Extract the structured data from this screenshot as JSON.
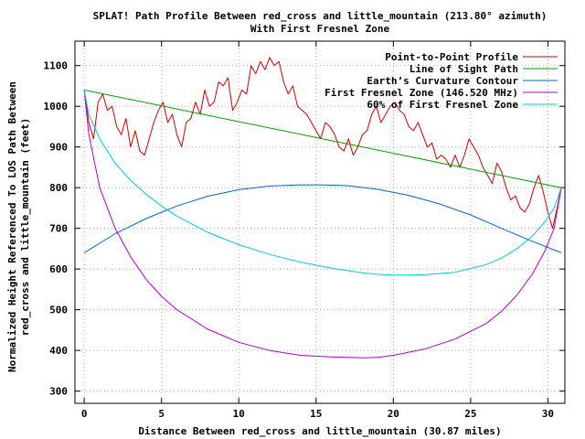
{
  "chart_data": {
    "type": "line",
    "title": "SPLAT! Path Profile Between red_cross and little_mountain (213.80° azimuth)",
    "subtitle": "With First Fresnel Zone",
    "xlabel": "Distance Between red_cross and little_mountain (30.87 miles)",
    "ylabel_line1": "Normalized Height Referenced To LOS Path Between",
    "ylabel_line2": "red_cross and little_mountain (feet)",
    "xlim": [
      -0.6,
      31.1
    ],
    "ylim": [
      270,
      1160
    ],
    "x_ticks": [
      0,
      5,
      10,
      15,
      20,
      25,
      30
    ],
    "x_tick_labels": [
      "0",
      "5",
      "10",
      "15",
      "20",
      "25",
      "30"
    ],
    "y_ticks": [
      300,
      400,
      500,
      600,
      700,
      800,
      900,
      1000,
      1100
    ],
    "y_tick_labels": [
      "300",
      "400",
      "500",
      "600",
      "700",
      "800",
      "900",
      "1000",
      "1100"
    ],
    "grid": true,
    "legend_position": "top-right",
    "series": [
      {
        "name": "Point-to-Point Profile",
        "color": "#cc0000",
        "x": [
          0,
          0.3,
          0.6,
          0.9,
          1.2,
          1.5,
          1.8,
          2.1,
          2.4,
          2.7,
          3.0,
          3.3,
          3.6,
          3.9,
          4.2,
          4.5,
          4.8,
          5.1,
          5.4,
          5.7,
          6.0,
          6.3,
          6.6,
          6.9,
          7.2,
          7.5,
          7.8,
          8.1,
          8.4,
          8.7,
          9.0,
          9.3,
          9.6,
          9.9,
          10.2,
          10.5,
          10.8,
          11.1,
          11.4,
          11.7,
          12.0,
          12.3,
          12.6,
          12.9,
          13.2,
          13.5,
          13.8,
          14.1,
          14.4,
          14.7,
          15.0,
          15.3,
          15.6,
          15.9,
          16.2,
          16.5,
          16.8,
          17.1,
          17.4,
          17.7,
          18.0,
          18.3,
          18.6,
          18.9,
          19.2,
          19.5,
          19.8,
          20.1,
          20.4,
          20.7,
          21.0,
          21.3,
          21.6,
          21.9,
          22.2,
          22.5,
          22.8,
          23.1,
          23.4,
          23.7,
          24.0,
          24.3,
          24.6,
          24.9,
          25.2,
          25.5,
          25.8,
          26.1,
          26.4,
          26.7,
          27.0,
          27.3,
          27.6,
          27.9,
          28.2,
          28.5,
          28.8,
          29.1,
          29.4,
          29.7,
          30.0,
          30.3,
          30.6,
          30.87
        ],
        "y": [
          1040,
          960,
          920,
          1010,
          1030,
          990,
          1000,
          950,
          930,
          970,
          900,
          940,
          890,
          880,
          920,
          960,
          990,
          1010,
          960,
          980,
          930,
          900,
          960,
          970,
          1010,
          980,
          1040,
          1000,
          1010,
          1060,
          1050,
          1070,
          990,
          1010,
          1040,
          1030,
          1100,
          1080,
          1110,
          1090,
          1120,
          1100,
          1110,
          1060,
          1030,
          1050,
          1000,
          990,
          980,
          960,
          940,
          920,
          960,
          950,
          930,
          900,
          890,
          920,
          880,
          900,
          930,
          940,
          980,
          1000,
          960,
          980,
          1000,
          1010,
          990,
          980,
          950,
          940,
          960,
          930,
          900,
          910,
          870,
          880,
          870,
          850,
          880,
          850,
          880,
          920,
          900,
          880,
          850,
          830,
          810,
          860,
          840,
          800,
          770,
          780,
          750,
          740,
          760,
          800,
          830,
          790,
          740,
          700,
          750,
          800
        ]
      },
      {
        "name": "Line of Sight Path",
        "color": "#00a000",
        "x": [
          0,
          30.87
        ],
        "y": [
          1040,
          800
        ]
      },
      {
        "name": "Earth’s Curvature Contour",
        "color": "#0066cc",
        "x": [
          0,
          2,
          4,
          6,
          8,
          10,
          12,
          14,
          15.4,
          17,
          19,
          21,
          23,
          25,
          27,
          29,
          30.87
        ],
        "y": [
          640,
          687,
          724,
          755,
          779,
          795,
          804,
          807,
          807,
          805,
          796,
          781,
          760,
          733,
          700,
          668,
          640
        ]
      },
      {
        "name": "First Fresnel Zone (146.520 MHz)",
        "color": "#b000c8",
        "x": [
          0,
          0.3,
          1,
          2,
          3,
          4,
          5,
          6,
          8,
          10,
          12,
          14,
          16,
          17,
          18,
          19,
          20,
          22,
          24,
          26,
          27,
          28,
          29,
          29.8,
          30.4,
          30.87
        ],
        "y": [
          1040,
          930,
          800,
          700,
          630,
          575,
          533,
          500,
          452,
          420,
          400,
          388,
          384,
          383,
          382,
          383,
          388,
          403,
          428,
          466,
          496,
          536,
          588,
          644,
          700,
          800
        ]
      },
      {
        "name": "60% of First Fresnel Zone",
        "color": "#00cccc",
        "x": [
          0,
          0.3,
          1,
          2,
          3,
          4,
          5,
          6,
          8,
          10,
          12,
          14,
          16,
          18,
          19,
          20,
          21,
          22,
          24,
          26,
          27,
          28,
          29,
          29.8,
          30.4,
          30.87
        ],
        "y": [
          1040,
          980,
          920,
          860,
          818,
          784,
          755,
          730,
          690,
          660,
          636,
          617,
          602,
          591,
          587,
          585,
          585,
          586,
          592,
          611,
          627,
          650,
          681,
          716,
          750,
          800
        ]
      }
    ]
  }
}
